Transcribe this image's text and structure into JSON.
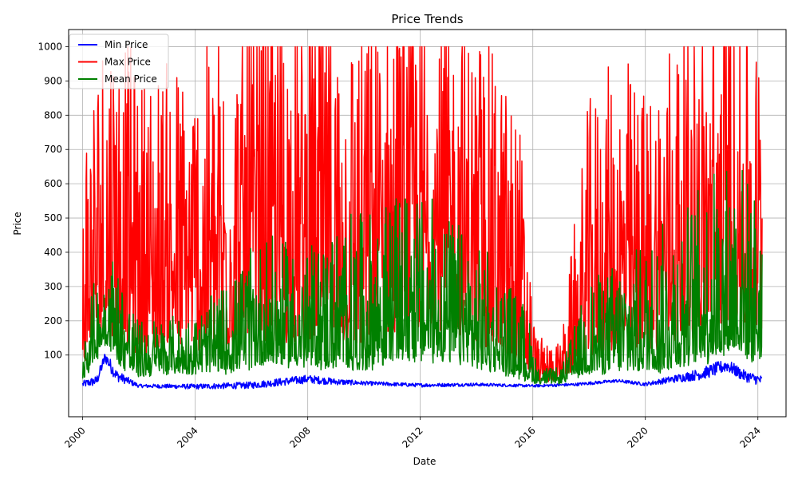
{
  "chart_data": {
    "type": "line",
    "title": "Price Trends",
    "xlabel": "Date",
    "ylabel": "Price",
    "xlim": [
      1999.5,
      2025.0
    ],
    "ylim": [
      -80,
      1050
    ],
    "x_ticks": [
      2000,
      2004,
      2008,
      2012,
      2016,
      2020,
      2024
    ],
    "x_tick_labels": [
      "2000",
      "2004",
      "2008",
      "2012",
      "2016",
      "2020",
      "2024"
    ],
    "y_ticks": [
      100,
      200,
      300,
      400,
      500,
      600,
      700,
      800,
      900,
      1000
    ],
    "y_tick_labels": [
      "100",
      "200",
      "300",
      "400",
      "500",
      "600",
      "700",
      "800",
      "900",
      "1000"
    ],
    "grid": true,
    "legend_position": "top-left",
    "data_range": [
      2000.0,
      2024.15
    ],
    "series": [
      {
        "name": "Min Price",
        "color": "#0000ff",
        "profile": [
          [
            2000.0,
            15
          ],
          [
            2000.5,
            25
          ],
          [
            2000.8,
            95
          ],
          [
            2001.2,
            40
          ],
          [
            2002.0,
            10
          ],
          [
            2004.0,
            8
          ],
          [
            2006.0,
            12
          ],
          [
            2008.0,
            30
          ],
          [
            2009.0,
            22
          ],
          [
            2010.0,
            18
          ],
          [
            2012.0,
            12
          ],
          [
            2014.0,
            14
          ],
          [
            2016.0,
            10
          ],
          [
            2017.5,
            14
          ],
          [
            2019.0,
            25
          ],
          [
            2020.0,
            15
          ],
          [
            2021.0,
            30
          ],
          [
            2022.0,
            45
          ],
          [
            2022.9,
            70
          ],
          [
            2023.5,
            40
          ],
          [
            2024.15,
            25
          ]
        ],
        "spread": [
          [
            2000.0,
            20
          ],
          [
            2001.0,
            40
          ],
          [
            2002.0,
            10
          ],
          [
            2008.0,
            25
          ],
          [
            2010.0,
            12
          ],
          [
            2016.0,
            8
          ],
          [
            2020.0,
            10
          ],
          [
            2022.5,
            40
          ],
          [
            2024.15,
            30
          ]
        ]
      },
      {
        "name": "Max Price",
        "color": "#ff0000",
        "profile": [
          [
            2000.0,
            80
          ],
          [
            2000.5,
            200
          ],
          [
            2001.0,
            220
          ],
          [
            2002.0,
            140
          ],
          [
            2003.0,
            160
          ],
          [
            2004.5,
            140
          ],
          [
            2006.5,
            180
          ],
          [
            2008.0,
            190
          ],
          [
            2010.0,
            170
          ],
          [
            2011.5,
            240
          ],
          [
            2013.0,
            230
          ],
          [
            2014.5,
            160
          ],
          [
            2015.5,
            90
          ],
          [
            2016.2,
            30
          ],
          [
            2017.0,
            30
          ],
          [
            2018.0,
            120
          ],
          [
            2019.0,
            150
          ],
          [
            2020.0,
            140
          ],
          [
            2021.0,
            190
          ],
          [
            2022.0,
            210
          ],
          [
            2023.0,
            260
          ],
          [
            2024.15,
            210
          ]
        ],
        "spread": [
          [
            2000.0,
            700
          ],
          [
            2001.0,
            900
          ],
          [
            2002.0,
            750
          ],
          [
            2004.0,
            800
          ],
          [
            2006.5,
            950
          ],
          [
            2008.0,
            950
          ],
          [
            2010.0,
            900
          ],
          [
            2012.0,
            950
          ],
          [
            2014.0,
            850
          ],
          [
            2015.5,
            700
          ],
          [
            2016.1,
            120
          ],
          [
            2017.0,
            100
          ],
          [
            2018.0,
            700
          ],
          [
            2019.0,
            800
          ],
          [
            2020.0,
            700
          ],
          [
            2021.0,
            850
          ],
          [
            2022.0,
            900
          ],
          [
            2023.0,
            950
          ],
          [
            2024.15,
            800
          ]
        ]
      },
      {
        "name": "Mean Price",
        "color": "#008000",
        "profile": [
          [
            2000.0,
            40
          ],
          [
            2000.8,
            150
          ],
          [
            2001.5,
            70
          ],
          [
            2002.0,
            45
          ],
          [
            2003.0,
            60
          ],
          [
            2005.0,
            60
          ],
          [
            2006.5,
            90
          ],
          [
            2008.0,
            80
          ],
          [
            2010.0,
            70
          ],
          [
            2011.5,
            110
          ],
          [
            2013.0,
            100
          ],
          [
            2014.5,
            70
          ],
          [
            2015.5,
            40
          ],
          [
            2016.2,
            20
          ],
          [
            2017.0,
            22
          ],
          [
            2018.0,
            55
          ],
          [
            2019.5,
            70
          ],
          [
            2020.5,
            60
          ],
          [
            2021.5,
            90
          ],
          [
            2022.5,
            110
          ],
          [
            2023.2,
            130
          ],
          [
            2024.15,
            100
          ]
        ],
        "spread": [
          [
            2000.0,
            150
          ],
          [
            2001.0,
            300
          ],
          [
            2002.0,
            150
          ],
          [
            2004.0,
            150
          ],
          [
            2006.5,
            350
          ],
          [
            2008.0,
            300
          ],
          [
            2009.0,
            400
          ],
          [
            2011.5,
            450
          ],
          [
            2013.0,
            400
          ],
          [
            2014.5,
            300
          ],
          [
            2015.8,
            200
          ],
          [
            2016.2,
            40
          ],
          [
            2017.0,
            40
          ],
          [
            2018.0,
            250
          ],
          [
            2020.0,
            350
          ],
          [
            2021.5,
            450
          ],
          [
            2022.5,
            500
          ],
          [
            2023.2,
            550
          ],
          [
            2024.15,
            450
          ]
        ]
      }
    ]
  }
}
